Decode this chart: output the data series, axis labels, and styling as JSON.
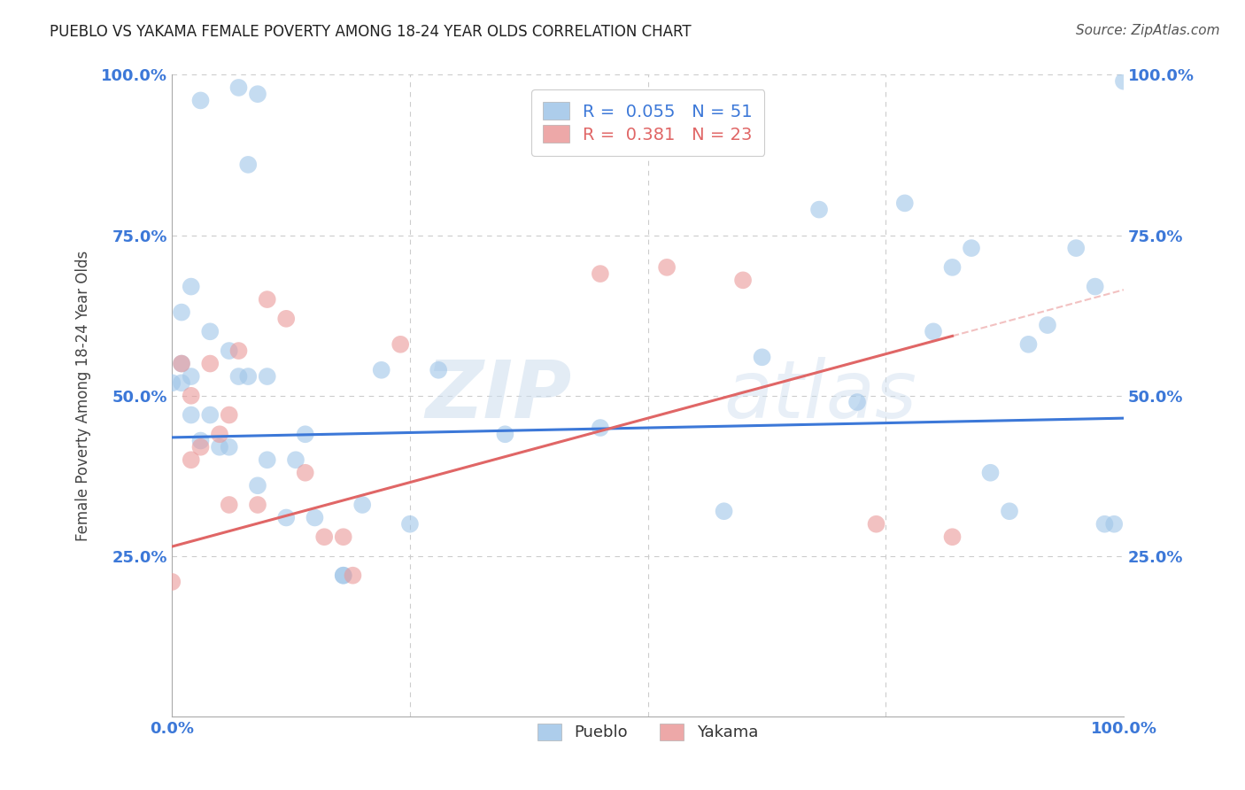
{
  "title": "PUEBLO VS YAKAMA FEMALE POVERTY AMONG 18-24 YEAR OLDS CORRELATION CHART",
  "source": "Source: ZipAtlas.com",
  "ylabel": "Female Poverty Among 18-24 Year Olds",
  "xlim": [
    0,
    1
  ],
  "ylim": [
    0,
    1
  ],
  "pueblo_color": "#9fc5e8",
  "yakama_color": "#ea9999",
  "pueblo_trend_color": "#3c78d8",
  "yakama_trend_color": "#e06666",
  "pueblo_R": 0.055,
  "pueblo_N": 51,
  "yakama_R": 0.381,
  "yakama_N": 23,
  "watermark_zip": "ZIP",
  "watermark_atlas": "atlas",
  "background_color": "#ffffff",
  "grid_color": "#cccccc",
  "pueblo_x": [
    0.03,
    0.07,
    0.08,
    0.09,
    0.01,
    0.01,
    0.02,
    0.02,
    0.03,
    0.04,
    0.05,
    0.06,
    0.07,
    0.08,
    0.09,
    0.1,
    0.1,
    0.12,
    0.13,
    0.15,
    0.18,
    0.22,
    0.25,
    0.28,
    0.35,
    0.45,
    0.58,
    0.62,
    0.68,
    0.72,
    0.77,
    0.8,
    0.82,
    0.84,
    0.86,
    0.88,
    0.9,
    0.92,
    0.95,
    0.97,
    0.98,
    0.99,
    1.0,
    0.01,
    0.02,
    0.04,
    0.06,
    0.14,
    0.2,
    0.0,
    0.18
  ],
  "pueblo_y": [
    0.96,
    0.98,
    0.86,
    0.97,
    0.55,
    0.52,
    0.53,
    0.47,
    0.43,
    0.47,
    0.42,
    0.42,
    0.53,
    0.53,
    0.36,
    0.53,
    0.4,
    0.31,
    0.4,
    0.31,
    0.22,
    0.54,
    0.3,
    0.54,
    0.44,
    0.45,
    0.32,
    0.56,
    0.79,
    0.49,
    0.8,
    0.6,
    0.7,
    0.73,
    0.38,
    0.32,
    0.58,
    0.61,
    0.73,
    0.67,
    0.3,
    0.3,
    0.99,
    0.63,
    0.67,
    0.6,
    0.57,
    0.44,
    0.33,
    0.52,
    0.22
  ],
  "yakama_x": [
    0.01,
    0.02,
    0.02,
    0.03,
    0.04,
    0.05,
    0.06,
    0.06,
    0.07,
    0.09,
    0.1,
    0.12,
    0.14,
    0.16,
    0.18,
    0.19,
    0.24,
    0.45,
    0.52,
    0.6,
    0.74,
    0.82,
    0.0
  ],
  "yakama_y": [
    0.55,
    0.5,
    0.4,
    0.42,
    0.55,
    0.44,
    0.33,
    0.47,
    0.57,
    0.33,
    0.65,
    0.62,
    0.38,
    0.28,
    0.28,
    0.22,
    0.58,
    0.69,
    0.7,
    0.68,
    0.3,
    0.28,
    0.21
  ]
}
